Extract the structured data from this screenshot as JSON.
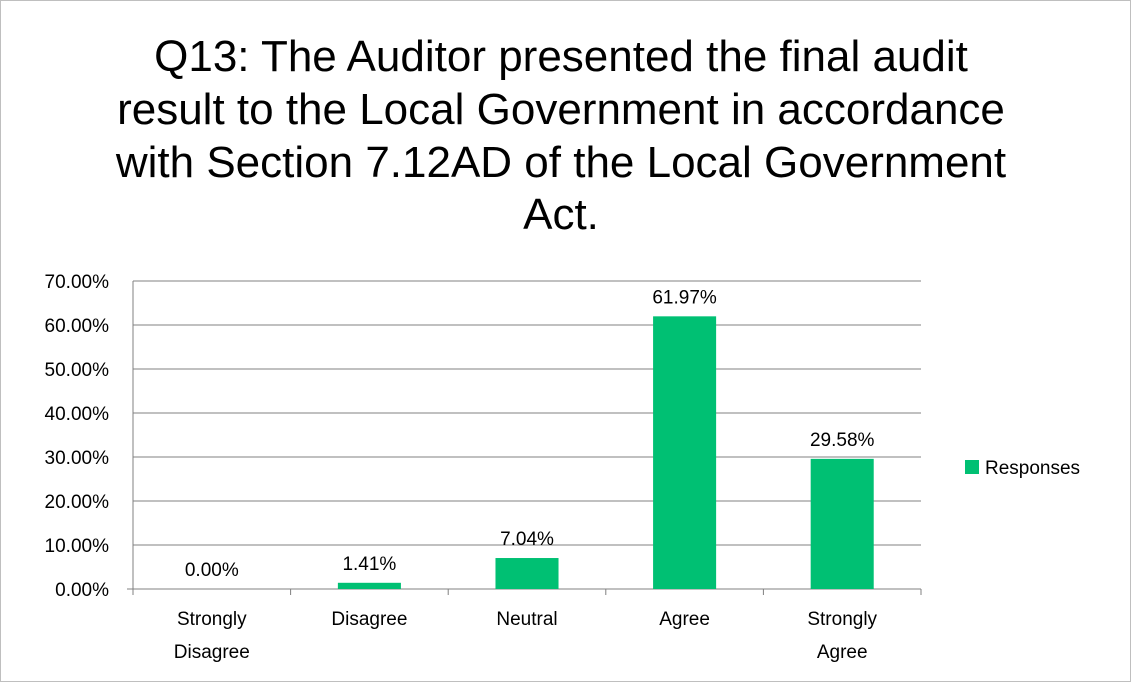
{
  "chart_data": {
    "type": "bar",
    "title": "Q13: The Auditor presented the final audit result to the Local Government in accordance with Section 7.12AD of the Local Government Act.",
    "categories": [
      [
        "Strongly",
        "Disagree"
      ],
      [
        "Disagree"
      ],
      [
        "Neutral"
      ],
      [
        "Agree"
      ],
      [
        "Strongly",
        "Agree"
      ]
    ],
    "series": [
      {
        "name": "Responses",
        "values": [
          0.0,
          1.41,
          7.04,
          61.97,
          29.58
        ],
        "labels": [
          "0.00%",
          "1.41%",
          "7.04%",
          "61.97%",
          "29.58%"
        ],
        "color": "#00c073"
      }
    ],
    "ylim": [
      0,
      70
    ],
    "yticks": [
      0,
      10,
      20,
      30,
      40,
      50,
      60,
      70
    ],
    "ytick_labels": [
      "0.00%",
      "10.00%",
      "20.00%",
      "30.00%",
      "40.00%",
      "50.00%",
      "60.00%",
      "70.00%"
    ],
    "xlabel": "",
    "ylabel": "",
    "grid": true,
    "legend_position": "right"
  }
}
